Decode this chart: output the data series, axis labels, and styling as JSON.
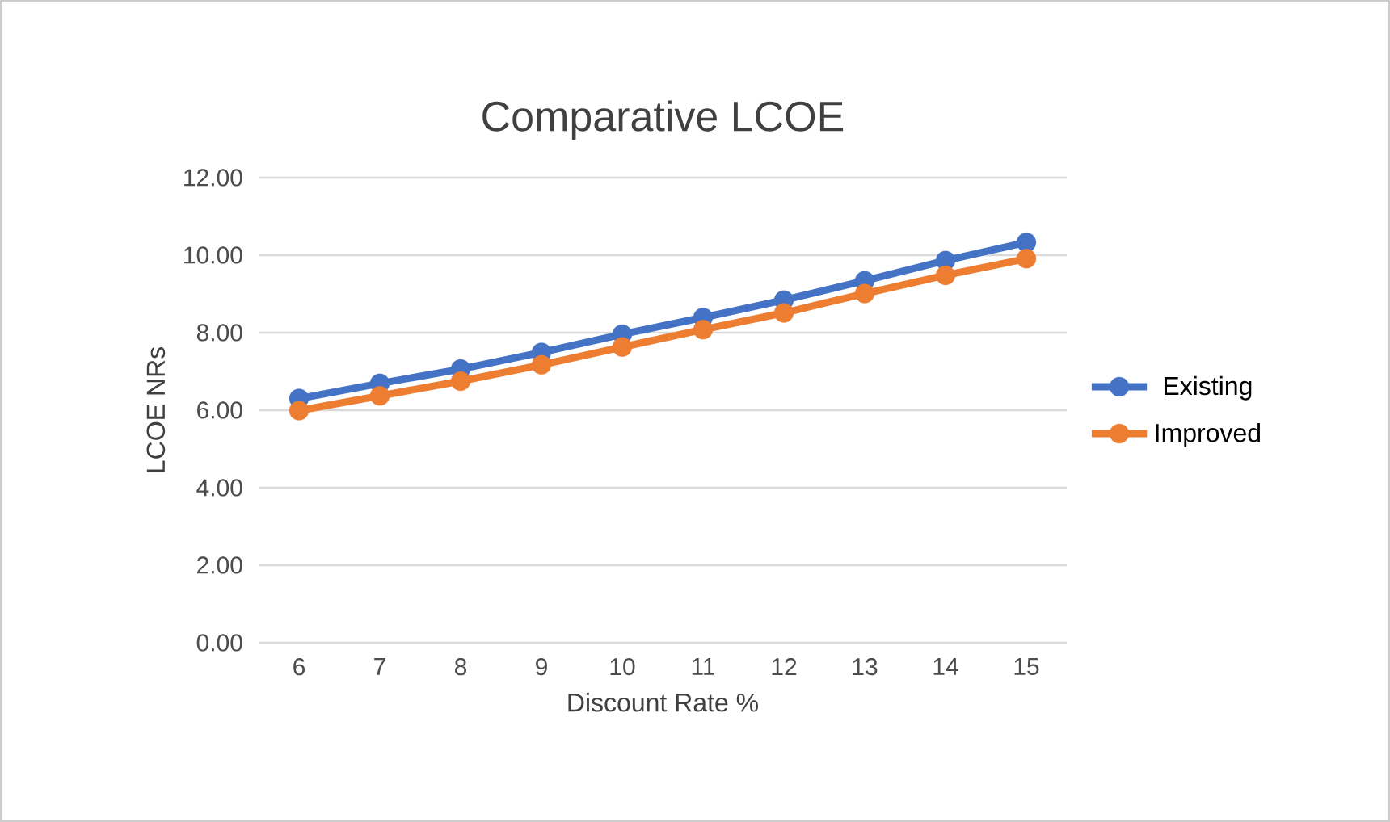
{
  "chart_data": {
    "type": "line",
    "title": "Comparative LCOE",
    "xlabel": "Discount Rate %",
    "ylabel": "LCOE NRs",
    "x": [
      6,
      7,
      8,
      9,
      10,
      11,
      12,
      13,
      14,
      15
    ],
    "series": [
      {
        "name": "Existing",
        "color": "#4472c4",
        "values": [
          6.3,
          6.69,
          7.06,
          7.49,
          7.96,
          8.39,
          8.84,
          9.34,
          9.86,
          10.33
        ]
      },
      {
        "name": "Improved",
        "color": "#ed7d31",
        "values": [
          5.99,
          6.37,
          6.75,
          7.17,
          7.63,
          8.08,
          8.51,
          9.01,
          9.48,
          9.91
        ]
      }
    ],
    "xlim": [
      5.5,
      15.5
    ],
    "xticks": [
      6,
      7,
      8,
      9,
      10,
      11,
      12,
      13,
      14,
      15
    ],
    "ylim": [
      0,
      12
    ],
    "yticks": [
      {
        "value": 0,
        "label": "0.00"
      },
      {
        "value": 2,
        "label": "2.00"
      },
      {
        "value": 4,
        "label": "4.00"
      },
      {
        "value": 6,
        "label": "6.00"
      },
      {
        "value": 8,
        "label": "8.00"
      },
      {
        "value": 10,
        "label": "10.00"
      },
      {
        "value": 12,
        "label": "12.00"
      }
    ],
    "grid": "y",
    "legend": "right",
    "marker": "circle",
    "line_style": "solid"
  }
}
